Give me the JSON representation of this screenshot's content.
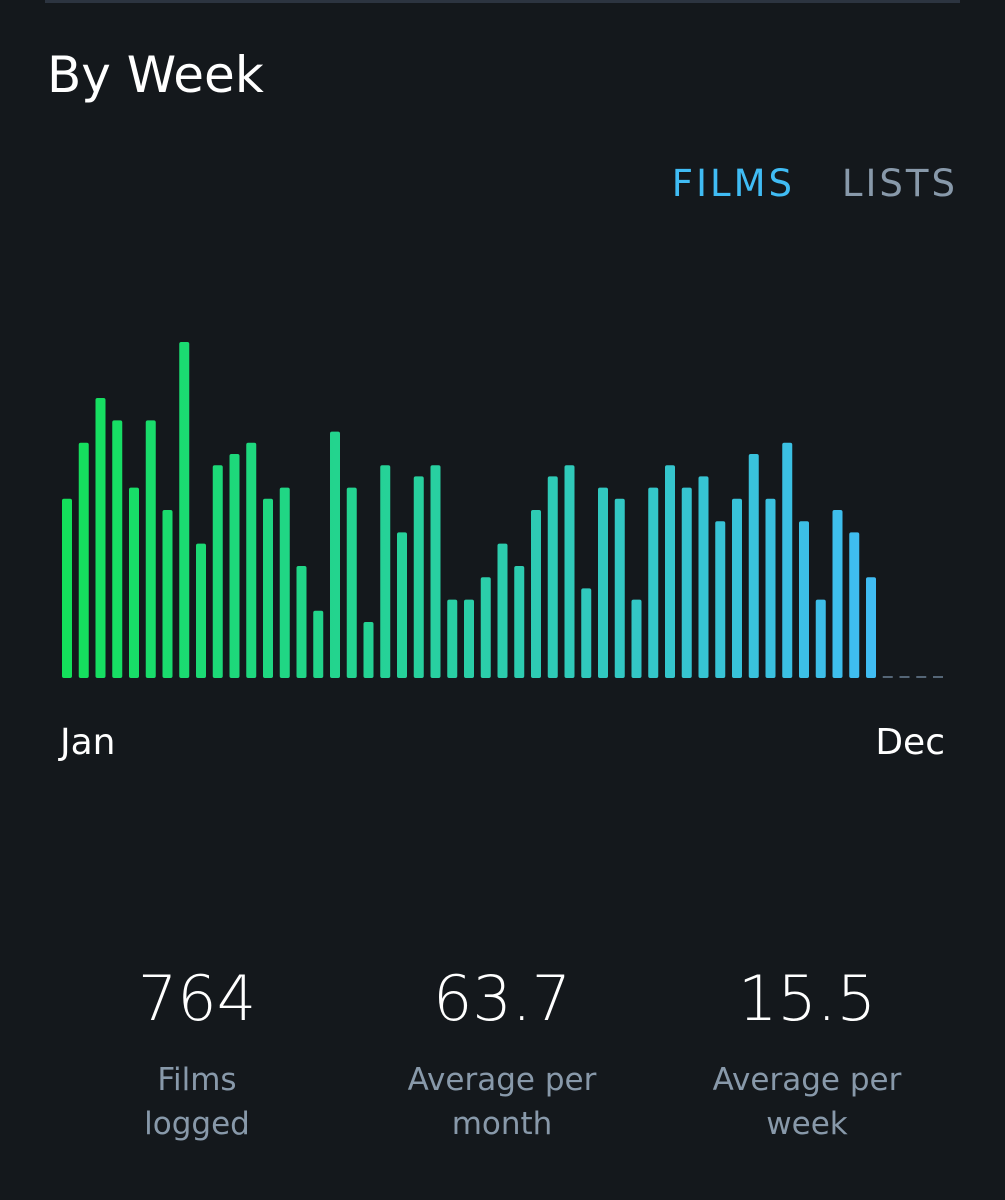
{
  "header": {
    "title": "By Week"
  },
  "tabs": [
    {
      "label": "FILMS",
      "active": true
    },
    {
      "label": "LISTS",
      "active": false
    }
  ],
  "chart_data": {
    "type": "bar",
    "x_start_label": "Jan",
    "x_end_label": "Dec",
    "values": [
      16,
      21,
      25,
      23,
      17,
      23,
      15,
      30,
      12,
      19,
      20,
      21,
      16,
      17,
      10,
      6,
      22,
      17,
      5,
      19,
      13,
      18,
      19,
      7,
      7,
      9,
      12,
      10,
      15,
      18,
      19,
      8,
      17,
      16,
      7,
      17,
      19,
      17,
      18,
      14,
      16,
      20,
      16,
      21,
      14,
      7,
      15,
      13,
      9,
      null,
      null,
      null,
      null
    ],
    "ylim": [
      0,
      30
    ],
    "gradient": [
      "#14e05a",
      "#40bcf4"
    ]
  },
  "stats": [
    {
      "value": 764,
      "label": "Films logged"
    },
    {
      "value": 63.7,
      "label": "Average per month"
    },
    {
      "value": 15.5,
      "label": "Average per week"
    }
  ]
}
